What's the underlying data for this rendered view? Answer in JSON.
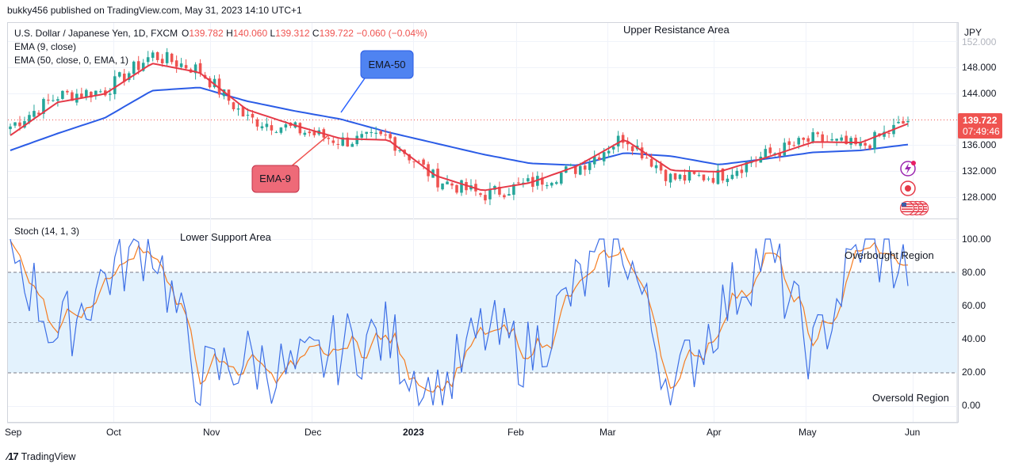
{
  "header": {
    "published": "bukky456 published on TradingView.com, May 31, 2023 14:10 UTC+1"
  },
  "footer": {
    "brand": "TradingView",
    "logo": "tradingview-logo"
  },
  "colors": {
    "up": "#26a69a",
    "down": "#ef5350",
    "ema9": "#e53947",
    "ema50": "#2b5ce6",
    "stochK": "#3d6fe6",
    "stochD": "#f57c20",
    "band": "#e3f2fd"
  },
  "legend": {
    "symbol": "U.S. Dollar / Japanese Yen, 1D, FXCM",
    "o_label": "O",
    "o": "139.782",
    "h_label": "H",
    "h": "140.060",
    "l_label": "L",
    "l": "139.312",
    "c_label": "C",
    "c": "139.722",
    "change": "−0.060 (−0.04%)",
    "ema9": "EMA (9, close)",
    "ema50": "EMA (50, close, 0, EMA, 1)"
  },
  "stoch": {
    "label": "Stoch (14, 1, 3)"
  },
  "price_axis": {
    "currency": "JPY",
    "ticks": [
      "152.000",
      "148.000",
      "144.000",
      "136.000",
      "132.000",
      "128.000"
    ],
    "last_price": "139.722",
    "countdown": "07:49:46"
  },
  "stoch_axis": {
    "ticks": [
      "100.00",
      "80.00",
      "60.00",
      "40.00",
      "20.00",
      "0.00"
    ]
  },
  "time_axis": {
    "ticks": [
      "Sep",
      "Oct",
      "Nov",
      "Dec",
      "2023",
      "Feb",
      "Mar",
      "Apr",
      "May",
      "Jun"
    ]
  },
  "annotations": {
    "upper_resistance": "Upper Resistance Area",
    "lower_support": "Lower Support Area",
    "overbought": "Overbought Region",
    "oversold": "Oversold Region",
    "ema50_callout": "EMA-50",
    "ema9_callout": "EMA-9"
  },
  "side_icons": [
    "lightning-alert-icon",
    "target-record-icon",
    "us-flag-icons"
  ],
  "chart_data": [
    {
      "type": "candlestick",
      "title": "U.S. Dollar / Japanese Yen, 1D, FXCM",
      "ylim": [
        126,
        154
      ],
      "x": [
        "2022-08-31",
        "2022-09-15",
        "2022-09-30",
        "2022-10-20",
        "2022-11-01",
        "2022-11-10",
        "2022-11-25",
        "2022-12-08",
        "2022-12-20",
        "2023-01-03",
        "2023-01-16",
        "2023-02-01",
        "2023-02-15",
        "2023-03-08",
        "2023-03-24",
        "2023-04-05",
        "2023-04-20",
        "2023-05-02",
        "2023-05-15",
        "2023-05-31"
      ],
      "series": [
        {
          "name": "Price",
          "values": [
            138.9,
            143.6,
            144.4,
            149.9,
            147.6,
            140.1,
            138.5,
            136.6,
            137.2,
            130.8,
            128.3,
            130.1,
            132.5,
            137.4,
            130.8,
            131.3,
            134.5,
            136.9,
            135.7,
            139.72
          ]
        },
        {
          "name": "EMA (9, close)",
          "values": [
            137.5,
            142.6,
            143.9,
            148.6,
            147.2,
            141.5,
            139.1,
            137.0,
            136.8,
            131.3,
            129.0,
            130.2,
            132.8,
            136.9,
            132.1,
            131.9,
            134.1,
            136.5,
            136.4,
            139.3
          ]
        },
        {
          "name": "EMA (50, close, 0, EMA, 1)",
          "values": [
            135.2,
            137.8,
            140.2,
            144.4,
            144.9,
            142.8,
            141.3,
            140.0,
            138.0,
            136.3,
            134.6,
            133.2,
            132.9,
            134.8,
            134.3,
            133.0,
            133.9,
            134.9,
            135.2,
            136.1
          ]
        }
      ],
      "last_price": 139.722
    },
    {
      "type": "line",
      "title": "Stoch (14, 1, 3)",
      "ylim": [
        0,
        100
      ],
      "levels": [
        80,
        50,
        20
      ],
      "x": [
        "2022-08-31",
        "2022-09-15",
        "2022-09-30",
        "2022-10-20",
        "2022-11-01",
        "2022-11-10",
        "2022-11-25",
        "2022-12-08",
        "2022-12-20",
        "2023-01-03",
        "2023-01-16",
        "2023-02-01",
        "2023-02-15",
        "2023-03-08",
        "2023-03-24",
        "2023-04-05",
        "2023-04-20",
        "2023-05-02",
        "2023-05-15",
        "2023-05-31"
      ],
      "series": [
        {
          "name": "%K",
          "values": [
            98,
            40,
            78,
            100,
            15,
            28,
            18,
            35,
            42,
            2,
            45,
            30,
            72,
            98,
            8,
            55,
            95,
            30,
            98,
            82
          ]
        },
        {
          "name": "%D",
          "values": [
            97,
            55,
            75,
            98,
            20,
            25,
            20,
            36,
            35,
            8,
            40,
            36,
            68,
            95,
            12,
            50,
            92,
            38,
            95,
            88
          ]
        }
      ]
    }
  ]
}
